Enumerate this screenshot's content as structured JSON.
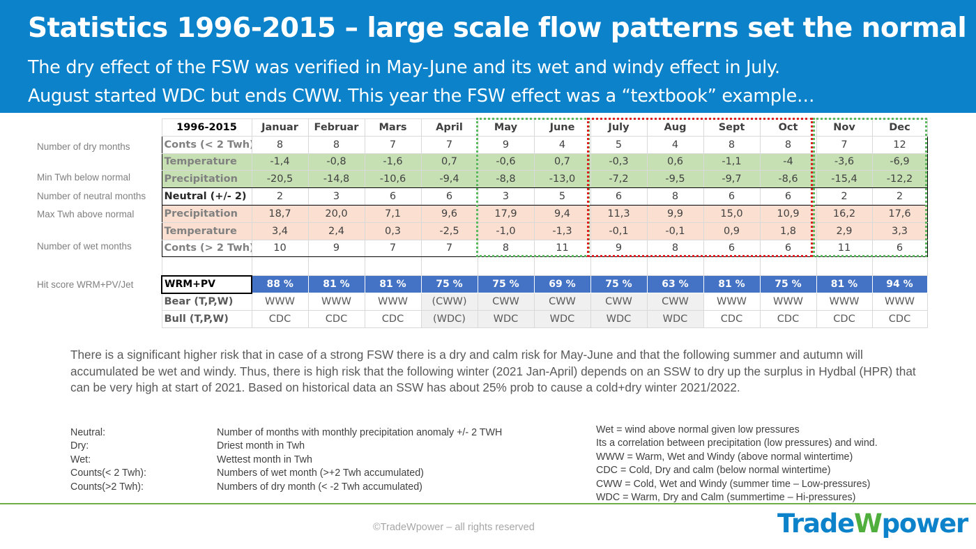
{
  "header": {
    "title": "Statistics 1996-2015 – large scale flow patterns set the normal",
    "subtitle_line1": "The dry effect of the FSW was verified in May-June and its wet and windy effect in July.",
    "subtitle_line2": "August started WDC but ends CWW. This year the FSW effect was a “textbook” example…"
  },
  "row_labels": {
    "dry": "Number of dry months",
    "min": "Min Twh below normal",
    "neutral": "Number of neutral months",
    "max": "Max Twh above normal",
    "wet": "Number of wet months",
    "hit": "Hit score WRM+PV/Jet"
  },
  "table": {
    "corner": "1996-2015",
    "months": [
      "Januar",
      "Februar",
      "Mars",
      "April",
      "May",
      "June",
      "July",
      "Aug",
      "Sept",
      "Oct",
      "Nov",
      "Dec"
    ],
    "rows": {
      "dry_counts": {
        "label": "Conts (< 2 Twh)",
        "values": [
          "8",
          "8",
          "7",
          "7",
          "9",
          "4",
          "5",
          "4",
          "8",
          "8",
          "7",
          "12"
        ]
      },
      "min_temp": {
        "label": "Temperature",
        "values": [
          "-1,4",
          "-0,8",
          "-1,6",
          "0,7",
          "-0,6",
          "0,7",
          "-0,3",
          "0,6",
          "-1,1",
          "-4",
          "-3,6",
          "-6,9"
        ]
      },
      "min_precip": {
        "label": "Precipitation",
        "values": [
          "-20,5",
          "-14,8",
          "-10,6",
          "-9,4",
          "-8,8",
          "-13,0",
          "-7,2",
          "-9,5",
          "-9,7",
          "-8,6",
          "-15,4",
          "-12,2"
        ]
      },
      "neutral": {
        "label": "Neutral (+/- 2)",
        "values": [
          "2",
          "3",
          "6",
          "6",
          "3",
          "5",
          "6",
          "8",
          "6",
          "6",
          "2",
          "2"
        ]
      },
      "max_precip": {
        "label": "Precipitation",
        "values": [
          "18,7",
          "20,0",
          "7,1",
          "9,6",
          "17,9",
          "9,4",
          "11,3",
          "9,9",
          "15,0",
          "10,9",
          "16,2",
          "17,6"
        ]
      },
      "max_temp": {
        "label": "Temperature",
        "values": [
          "3,4",
          "2,4",
          "0,3",
          "-2,5",
          "-1,0",
          "-1,3",
          "-0,1",
          "-0,1",
          "0,9",
          "1,8",
          "2,9",
          "3,3"
        ]
      },
      "wet_counts": {
        "label": "Conts (> 2 Twh)",
        "values": [
          "10",
          "9",
          "7",
          "7",
          "8",
          "11",
          "9",
          "8",
          "6",
          "6",
          "11",
          "6"
        ]
      },
      "hit": {
        "label": "WRM+PV",
        "values": [
          "88 %",
          "81 %",
          "81 %",
          "75 %",
          "75 %",
          "69 %",
          "75 %",
          "63 %",
          "81 %",
          "75 %",
          "81 %",
          "94 %"
        ]
      },
      "bear": {
        "label": "Bear (T,P,W)",
        "values": [
          "WWW",
          "WWW",
          "WWW",
          "(CWW)",
          "CWW",
          "CWW",
          "CWW",
          "CWW",
          "WWW",
          "WWW",
          "WWW",
          "WWW"
        ]
      },
      "bull": {
        "label": "Bull (T,P,W)",
        "values": [
          "CDC",
          "CDC",
          "CDC",
          "(WDC)",
          "WDC",
          "WDC",
          "WDC",
          "WDC",
          "CDC",
          "CDC",
          "CDC",
          "CDC"
        ]
      }
    }
  },
  "paragraph": "There is a significant higher risk that in case of a strong FSW there is a dry and calm risk for May-June and that the following summer and autumn will accumulated be wet and windy. Thus, there is high risk that the following winter (2021 Jan-April) depends on an SSW to dry up the surplus in Hydbal (HPR) that can be very high at start of 2021. Based on historical data an SSW has about 25% prob to cause a cold+dry winter 2021/2022.",
  "definitions": [
    {
      "term": "Neutral:",
      "desc": "Number of months with monthly precipitation anomaly +/- 2 TWH"
    },
    {
      "term": "Dry:",
      "desc": "Driest month in Twh"
    },
    {
      "term": "Wet:",
      "desc": "Wettest month in Twh"
    },
    {
      "term": "Counts(< 2 Twh):",
      "desc": "Numbers of wet month (>+2 Twh accumulated)"
    },
    {
      "term": "Counts(>2 Twh):",
      "desc": "Numbers of dry month  (< -2 Twh accumulated)"
    }
  ],
  "legend": [
    "Wet = wind above normal given low pressures",
    "Its  a correlation between precipitation (low pressures) and wind.",
    "WWW = Warm, Wet and Windy (above normal wintertime)",
    "CDC = Cold, Dry and calm (below normal wintertime)",
    "CWW = Cold, Wet and Windy (summer time – Low-pressures)",
    "WDC = Warm, Dry and Calm (summertime – Hi-pressures)"
  ],
  "footer": "©TradeWpower – all rights reserved",
  "logo": {
    "part1": "Trade",
    "part2": "W",
    "part3": "power"
  },
  "colors": {
    "banner": "#0b82c9",
    "green_rows": "#c6e0b4",
    "orange_rows": "#fbe0d1",
    "hit_row": "#4472c4",
    "dotted_green": "#5cb85c",
    "dotted_red": "#e02020"
  }
}
